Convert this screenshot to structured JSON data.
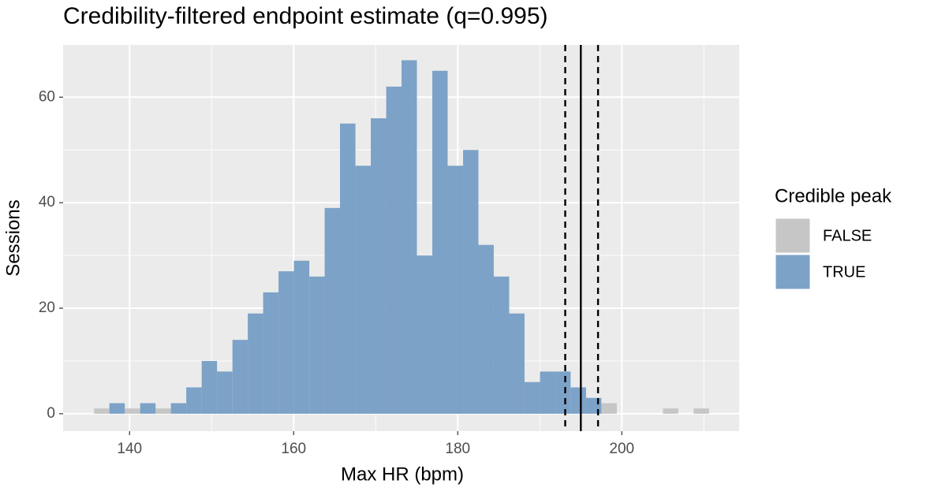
{
  "chart_data": {
    "type": "histogram",
    "title": "Credibility-filtered endpoint estimate (q=0.995)",
    "x_label": "Max HR (bpm)",
    "y_label": "Sessions",
    "bins": [
      135.67,
      137.54,
      139.42,
      141.29,
      143.17,
      145.04,
      146.91,
      148.79,
      150.66,
      152.54,
      154.41,
      156.28,
      158.16,
      160.03,
      161.91,
      163.78,
      165.65,
      167.53,
      169.4,
      171.28,
      173.15,
      175.02,
      176.9,
      178.77,
      180.65,
      182.52,
      184.39,
      186.27,
      188.14,
      190.02,
      191.89,
      193.76,
      195.64,
      197.51,
      199.39,
      201.26,
      203.13,
      205.01,
      206.88,
      208.76,
      210.63
    ],
    "series": [
      {
        "name": "FALSE",
        "color": "#c6c6c6",
        "values": [
          1,
          0,
          1,
          0,
          1,
          0,
          0,
          0,
          0,
          0,
          0,
          0,
          0,
          0,
          0,
          0,
          0,
          0,
          0,
          0,
          0,
          0,
          0,
          0,
          0,
          0,
          0,
          0,
          0,
          0,
          0,
          0,
          0,
          2,
          0,
          0,
          0,
          1,
          0,
          1
        ]
      },
      {
        "name": "TRUE",
        "color": "#7ca2c8",
        "values": [
          0,
          2,
          0,
          2,
          0,
          2,
          5,
          10,
          8,
          14,
          19,
          23,
          27,
          29,
          26,
          39,
          55,
          47,
          56,
          62,
          67,
          30,
          65,
          47,
          50,
          32,
          26,
          19,
          6,
          8,
          8,
          5,
          3,
          0,
          0,
          0,
          0,
          0,
          0,
          0
        ]
      }
    ],
    "reference_lines": [
      {
        "value": 195.0,
        "style": "solid"
      },
      {
        "value": 193.1,
        "style": "dashed"
      },
      {
        "value": 197.1,
        "style": "dashed"
      }
    ],
    "legend_title": "Credible peak",
    "legend_position": "right",
    "xlim": [
      131.9,
      214.3
    ],
    "xticks": [
      140,
      160,
      180,
      200
    ],
    "ylim": [
      -3.3,
      69.9
    ],
    "yticks": [
      0,
      20,
      40,
      60
    ],
    "grid": true,
    "minor_grid": true
  }
}
